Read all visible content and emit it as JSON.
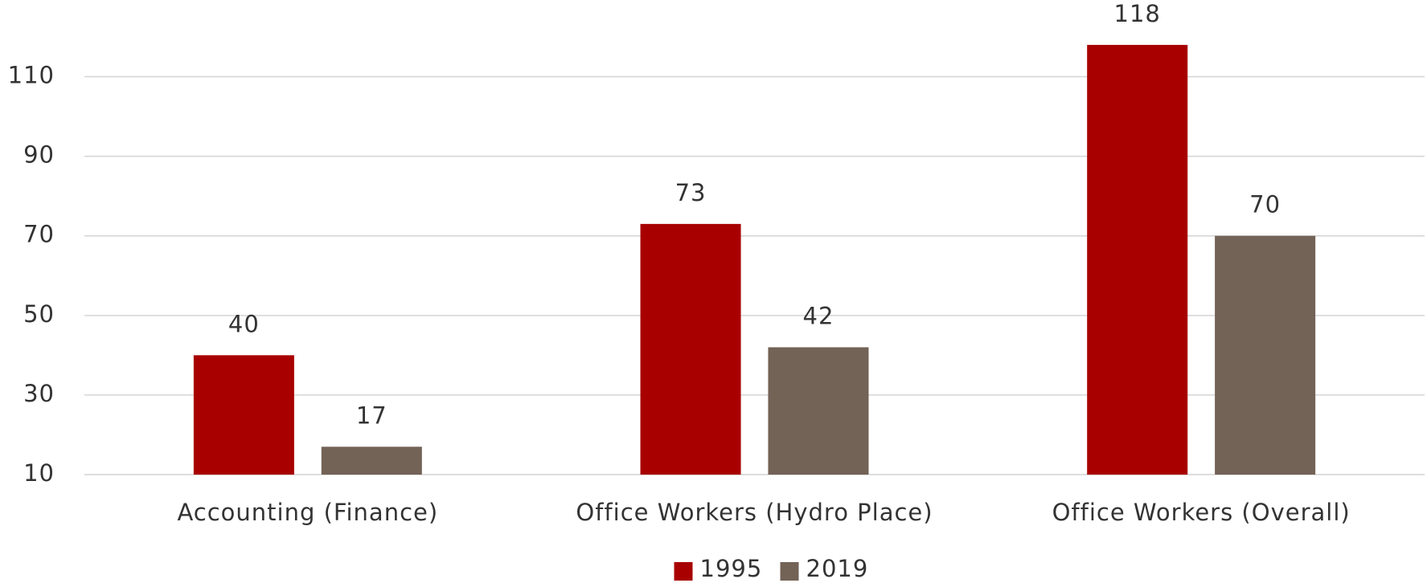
{
  "chart_data": {
    "type": "bar",
    "categories": [
      "Accounting (Finance)",
      "Office Workers (Hydro Place)",
      "Office Workers (Overall)"
    ],
    "series": [
      {
        "name": "1995",
        "color": "#a80000",
        "values": [
          40,
          73,
          118
        ]
      },
      {
        "name": "2019",
        "color": "#736256",
        "values": [
          17,
          42,
          70
        ]
      }
    ],
    "ylim": [
      10,
      120
    ],
    "yticks": [
      10,
      30,
      50,
      70,
      90,
      110
    ],
    "grid": true,
    "legend": "bottom"
  }
}
